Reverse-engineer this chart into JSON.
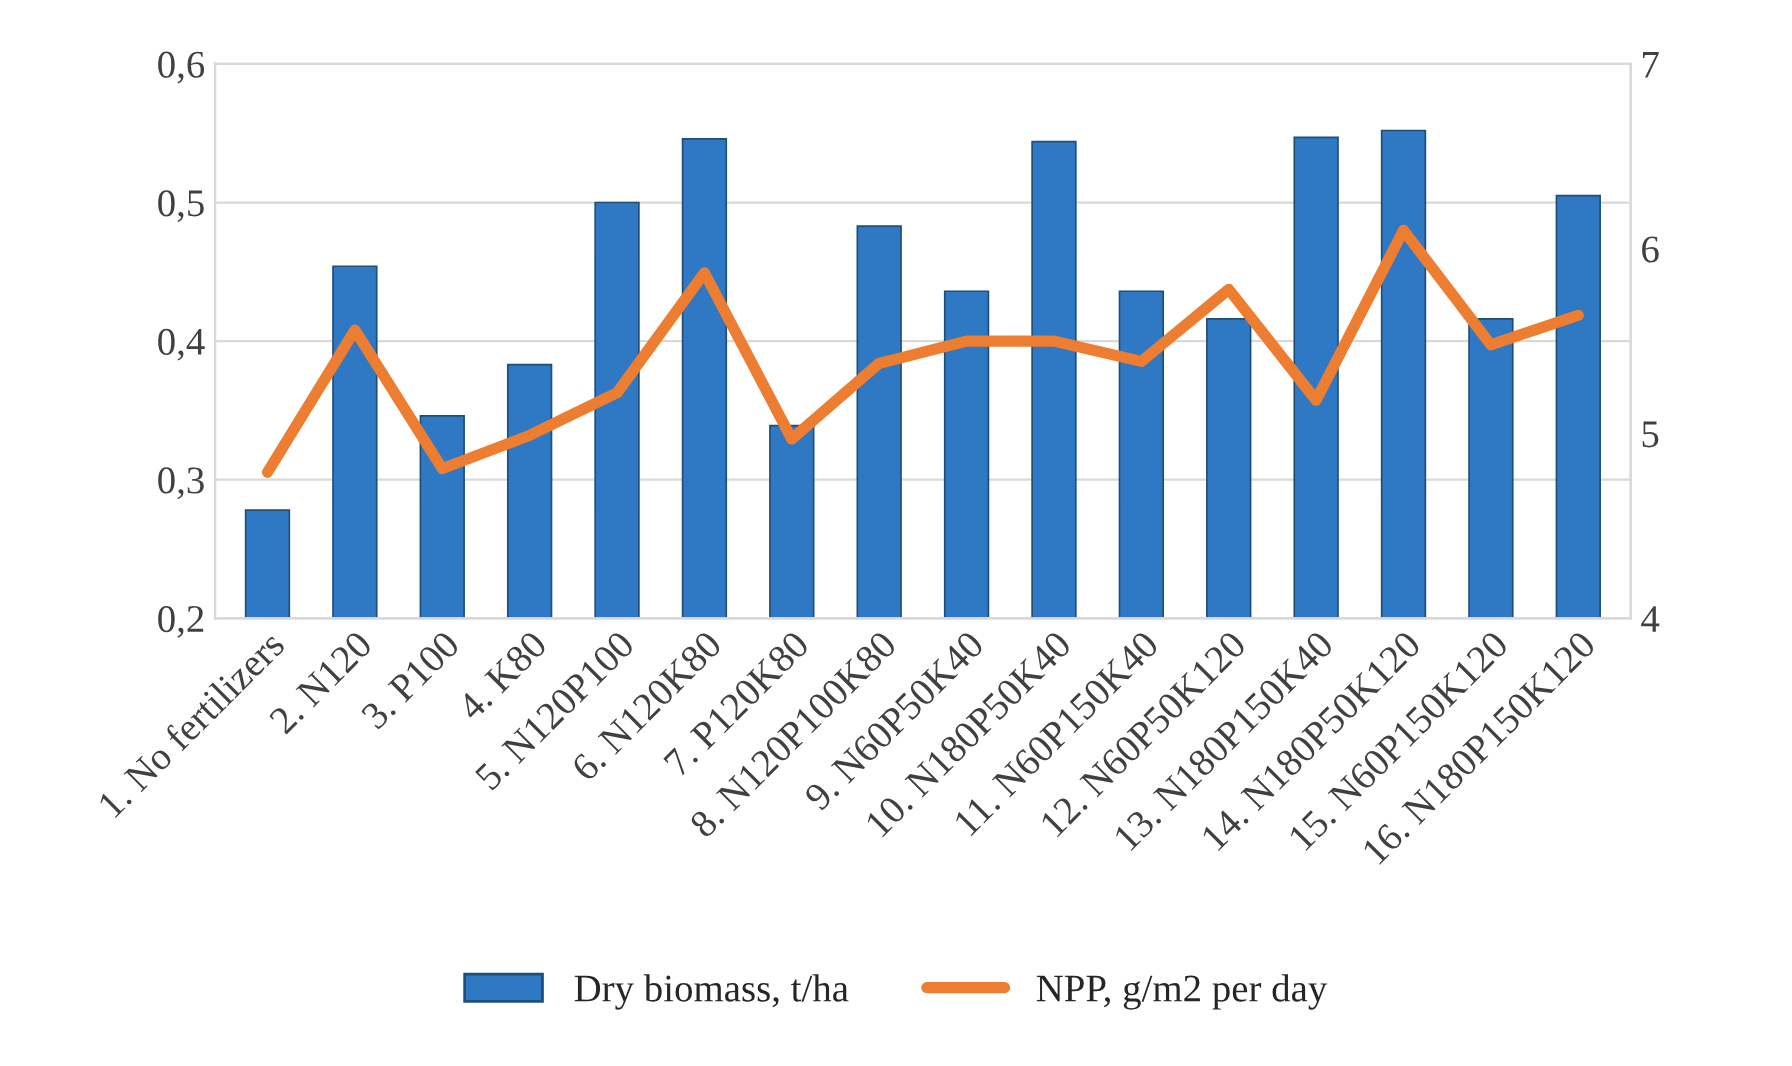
{
  "chart_data": {
    "type": "bar",
    "categories": [
      "1. No fertilizers",
      "2. N120",
      "3. P100",
      "4. K80",
      "5. N120P100",
      "6. N120K80",
      "7. P120K80",
      "8. N120P100K80",
      "9. N60P50K40",
      "10. N180P50K40",
      "11. N60P150K40",
      "12. N60P50K120",
      "13. N180P150K40",
      "14. N180P50K120",
      "15. N60P150K120",
      "16. N180P150K120"
    ],
    "series": [
      {
        "name": "Dry biomass, t/ha",
        "color": "#2f78c4",
        "values": [
          0.278,
          0.454,
          0.346,
          0.383,
          0.5,
          0.546,
          0.339,
          0.483,
          0.436,
          0.544,
          0.436,
          0.416,
          0.547,
          0.552,
          0.416,
          0.505
        ]
      },
      {
        "name": "NPP, g/m2 per day",
        "color": "#ed7d31",
        "type": "line",
        "axis": "y2",
        "values": [
          4.79,
          5.56,
          4.81,
          4.99,
          5.22,
          5.87,
          4.97,
          5.38,
          5.5,
          5.5,
          5.39,
          5.78,
          5.18,
          6.1,
          5.48,
          5.64
        ]
      }
    ],
    "ylim": [
      0.2,
      0.6
    ],
    "yticks": [
      {
        "value": 0.2,
        "label": "0,2"
      },
      {
        "value": 0.3,
        "label": "0,3"
      },
      {
        "value": 0.4,
        "label": "0,4"
      },
      {
        "value": 0.5,
        "label": "0,5"
      },
      {
        "value": 0.6,
        "label": "0,6"
      }
    ],
    "y2lim": [
      4,
      7
    ],
    "y2ticks": [
      4,
      5,
      6,
      7
    ],
    "grid": "y",
    "legend": "bottom",
    "marker": "none",
    "line_style": "solid"
  }
}
